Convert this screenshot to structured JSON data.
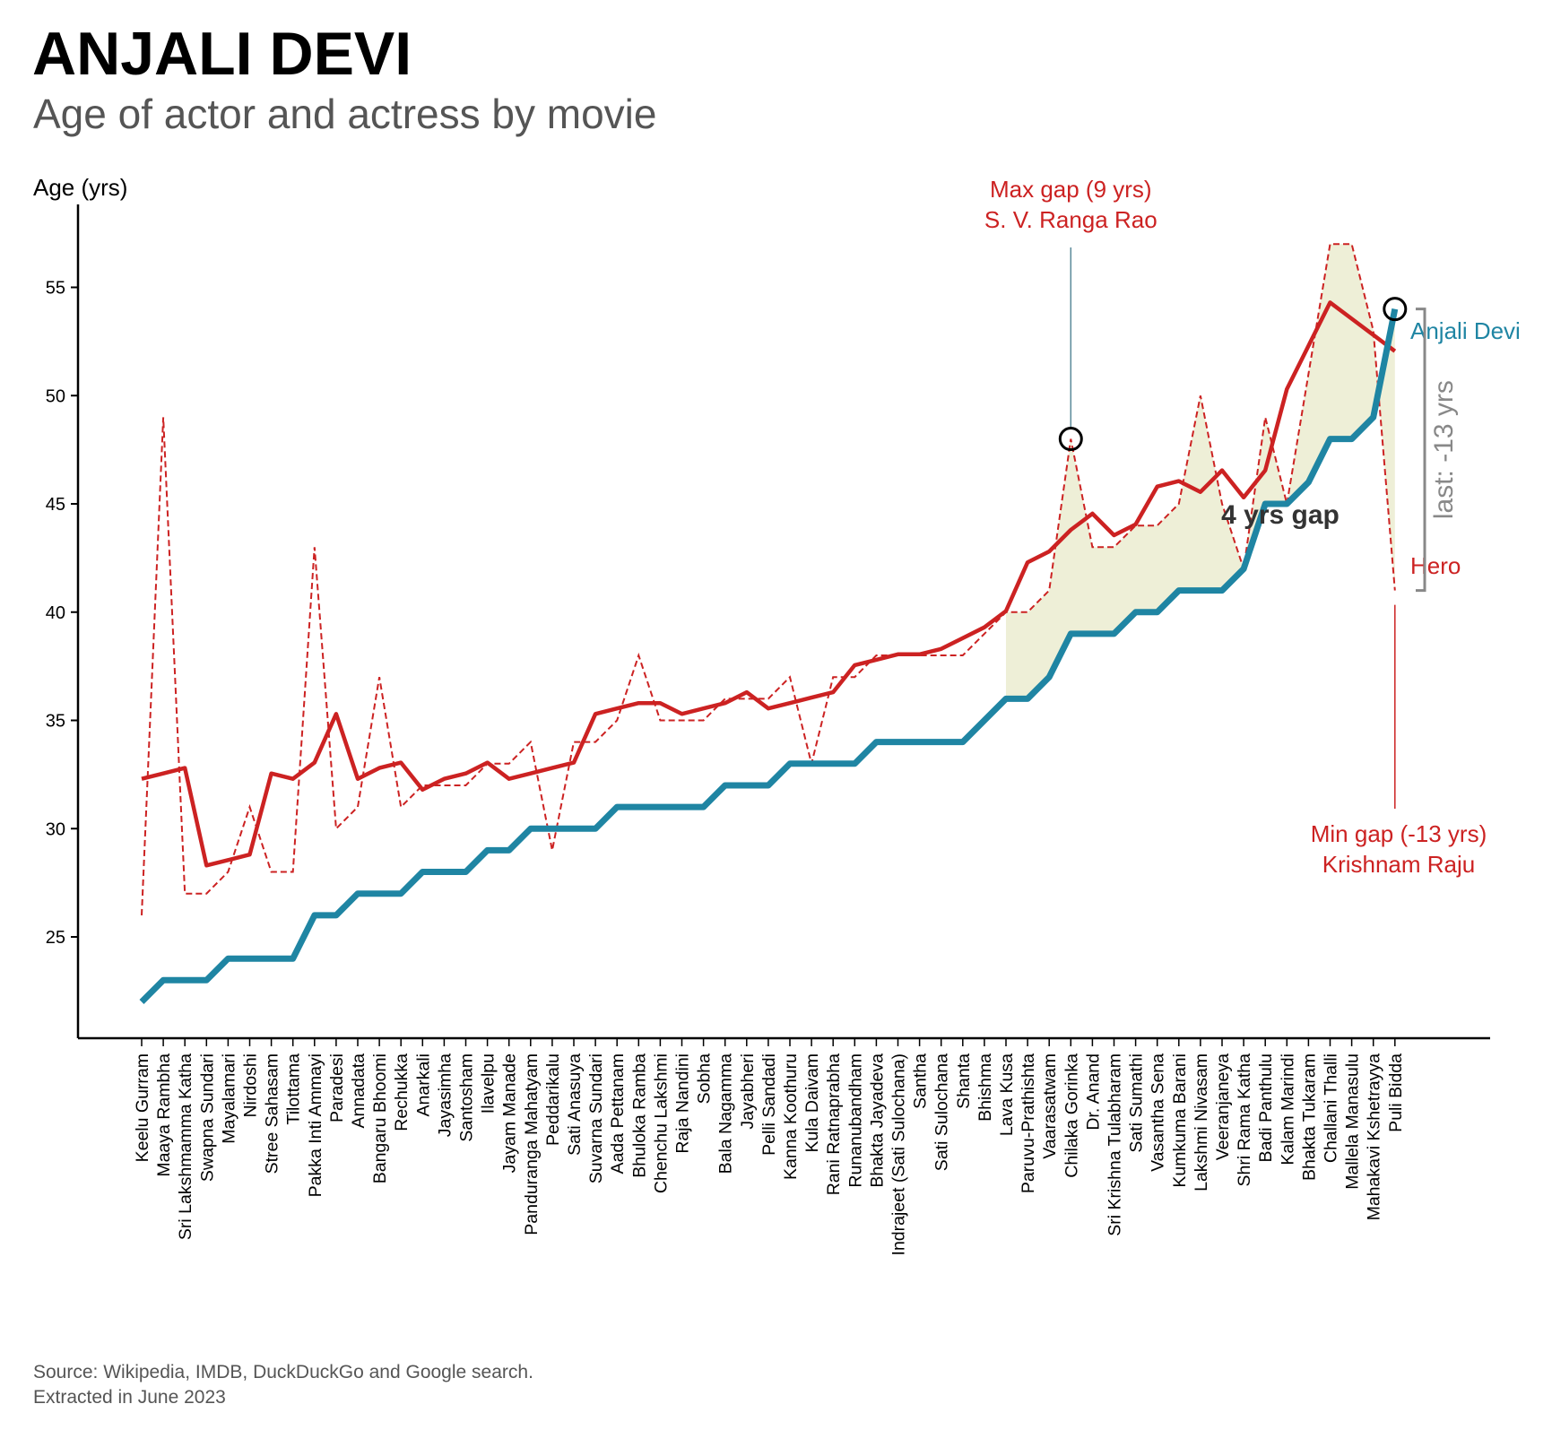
{
  "title": "ANJALI DEVI",
  "subtitle": "Age of actor and actress by movie",
  "source": {
    "line1": "Source: Wikipedia, IMDB, DuckDuckGo and Google search.",
    "line2": "Extracted in June 2023"
  },
  "colors": {
    "actress": "#1f85a3",
    "actor": "#cc2222",
    "gap_fill": "#eeefd7",
    "highlight_stroke": "#000000",
    "bracket": "#888888"
  },
  "chart_data": {
    "type": "line",
    "ylabel": "Age (yrs)",
    "yticks": [
      25,
      30,
      35,
      40,
      45,
      50,
      55
    ],
    "ylim": [
      20.5,
      58.5
    ],
    "categories": [
      "Keelu Gurram",
      "Maaya Rambha",
      "Sri Lakshmamma Katha",
      "Swapna Sundari",
      "Mayalamari",
      "Nirdoshi",
      "Stree Sahasam",
      "Tilottama",
      "Pakka Inti Ammayi",
      "Paradesi",
      "Annadata",
      "Bangaru Bhoomi",
      "Rechukka",
      "Anarkali",
      "Jayasimha",
      "Santosham",
      "Ilavelpu",
      "Jayam Manade",
      "Panduranga Mahatyam",
      "Peddarikalu",
      "Sati Anasuya",
      "Suvarna Sundari",
      "Aada Pettanam",
      "Bhuloka Ramba",
      "Chenchu Lakshmi",
      "Raja Nandini",
      "Sobha",
      "Bala Nagamma",
      "Jayabheri",
      "Pelli Sandadi",
      "Kanna Koothuru",
      "Kula Daivam",
      "Rani Ratnaprabha",
      "Runanubandham",
      "Bhakta Jayadeva",
      "Indrajeet (Sati Sulochana)",
      "Santha",
      "Sati Sulochana",
      "Shanta",
      "Bhishma",
      "Lava Kusa",
      "Paruvu-Prathishta",
      "Vaarasatwam",
      "Chilaka Gorinka",
      "Dr. Anand",
      "Sri Krishna Tulabharam",
      "Sati Sumathi",
      "Vasantha Sena",
      "Kumkuma Barani",
      "Lakshmi Nivasam",
      "Veeranjaneya",
      "Shri Rama Katha",
      "Badi Panthulu",
      "Kalam Marindi",
      "Bhakta Tukaram",
      "Challani Thalli",
      "Mallela Manasulu",
      "Mahakavi Kshetrayya",
      "Puli Bidda"
    ],
    "series": [
      {
        "name": "Anjali Devi",
        "style": "thick solid",
        "values": [
          22,
          23,
          23,
          23,
          24,
          24,
          24,
          24,
          26,
          26,
          27,
          27,
          27,
          28,
          28,
          28,
          29,
          29,
          30,
          30,
          30,
          30,
          31,
          31,
          31,
          31,
          31,
          32,
          32,
          32,
          33,
          33,
          33,
          33,
          34,
          34,
          34,
          34,
          34,
          35,
          36,
          36,
          37,
          39,
          39,
          39,
          40,
          40,
          41,
          41,
          41,
          42,
          45,
          45,
          46,
          48,
          48,
          49,
          54
        ]
      },
      {
        "name": "Hero",
        "style": "dashed",
        "values": [
          26,
          49,
          27,
          27,
          28,
          31,
          28,
          28,
          43,
          30,
          31,
          37,
          31,
          32,
          32,
          32,
          33,
          33,
          34,
          29,
          34,
          34,
          35,
          38,
          35,
          35,
          35,
          36,
          36,
          36,
          37,
          33,
          37,
          37,
          38,
          38,
          38,
          38,
          38,
          39,
          40,
          40,
          41,
          48,
          43,
          43,
          44,
          44,
          45,
          50,
          45,
          42,
          49,
          45,
          51,
          57,
          57,
          53,
          41
        ]
      },
      {
        "name": "Hero (rolling average)",
        "style": "solid",
        "values": [
          32.3,
          32.55,
          32.8,
          28.3,
          28.55,
          28.8,
          32.55,
          32.3,
          33.05,
          35.3,
          32.3,
          32.8,
          33.05,
          31.8,
          32.3,
          32.55,
          33.05,
          32.3,
          32.55,
          32.8,
          33.05,
          35.3,
          35.55,
          35.8,
          35.8,
          35.3,
          35.55,
          35.8,
          36.3,
          35.55,
          35.8,
          36.05,
          36.3,
          37.55,
          37.8,
          38.05,
          38.05,
          38.3,
          38.8,
          39.3,
          40.05,
          42.3,
          42.8,
          43.8,
          44.55,
          43.55,
          44.05,
          45.8,
          46.05,
          45.55,
          46.55,
          45.3,
          46.55,
          50.3,
          52.3,
          54.3,
          53.55,
          52.8,
          52.05
        ]
      }
    ],
    "gap_shading": {
      "from": "Lava Kusa",
      "to": "Puli Bidda"
    },
    "annotations": {
      "max_gap_line1": "Max gap (9 yrs)",
      "max_gap_line2": "S. V. Ranga Rao",
      "max_gap_movie": "Chilaka Gorinka",
      "max_gap_value": 48,
      "min_gap_line1": "Min gap (-13 yrs)",
      "min_gap_line2": "Krishnam Raju",
      "min_gap_movie": "Puli Bidda",
      "gap_label": "4 yrs gap",
      "last_label": "last: -13 yrs",
      "actress_label": "Anjali Devi",
      "hero_label": "Hero",
      "last_actress_value": 54
    }
  }
}
